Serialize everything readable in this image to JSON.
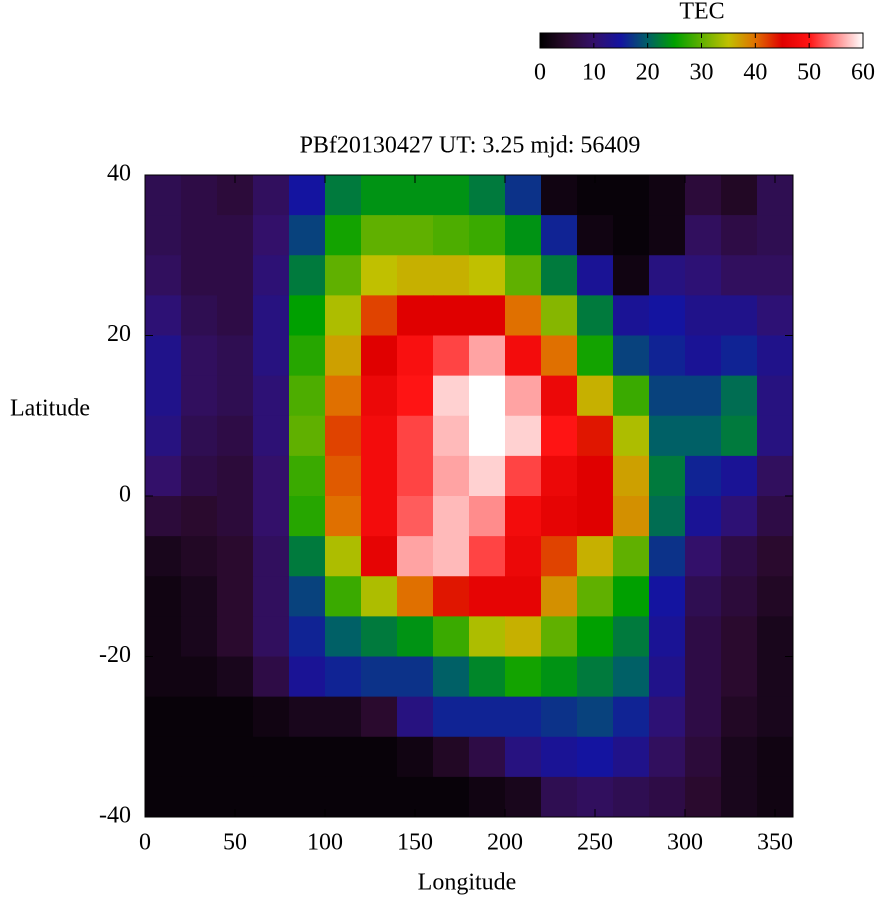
{
  "chart_data": {
    "type": "heatmap",
    "title": "PBf20130427  UT: 3.25  mjd: 56409",
    "x_label": "Longitude",
    "y_label": "Latitude",
    "colorbar_label": "TEC",
    "x": [
      10,
      30,
      50,
      70,
      90,
      110,
      130,
      150,
      170,
      190,
      210,
      230,
      250,
      270,
      290,
      310,
      330,
      350
    ],
    "y": [
      37.5,
      32.5,
      27.5,
      22.5,
      17.5,
      12.5,
      7.5,
      2.5,
      -2.5,
      -7.5,
      -12.5,
      -17.5,
      -22.5,
      -27.5,
      -32.5,
      -37.5
    ],
    "z": [
      [
        8,
        7,
        6,
        9,
        15,
        22,
        24,
        24,
        24,
        22,
        17,
        2,
        1,
        1,
        2,
        6,
        4,
        8
      ],
      [
        8,
        7,
        7,
        10,
        18,
        26,
        30,
        30,
        29,
        28,
        24,
        16,
        2,
        1,
        2,
        9,
        7,
        8
      ],
      [
        9,
        7,
        7,
        11,
        22,
        30,
        35,
        36,
        36,
        35,
        30,
        22,
        14,
        2,
        12,
        11,
        9,
        9
      ],
      [
        11,
        8,
        7,
        12,
        25,
        34,
        42,
        45,
        45,
        45,
        40,
        32,
        22,
        14,
        15,
        13,
        13,
        11
      ],
      [
        13,
        9,
        8,
        12,
        27,
        37,
        45,
        49,
        52,
        56,
        48,
        40,
        26,
        18,
        16,
        14,
        16,
        13
      ],
      [
        13,
        9,
        8,
        11,
        29,
        40,
        47,
        50,
        58,
        60,
        56,
        47,
        36,
        28,
        18,
        18,
        21,
        12
      ],
      [
        12,
        8,
        7,
        11,
        30,
        42,
        48,
        52,
        57,
        60,
        58,
        50,
        44,
        34,
        20,
        20,
        22,
        12
      ],
      [
        10,
        7,
        6,
        10,
        28,
        41,
        48,
        52,
        56,
        58,
        52,
        47,
        45,
        37,
        22,
        16,
        14,
        9
      ],
      [
        6,
        5,
        6,
        10,
        27,
        40,
        48,
        53,
        57,
        55,
        48,
        46,
        45,
        38,
        21,
        14,
        11,
        7
      ],
      [
        3,
        4,
        5,
        9,
        22,
        34,
        46,
        56,
        57,
        52,
        47,
        42,
        36,
        30,
        17,
        10,
        7,
        5
      ],
      [
        2,
        3,
        5,
        9,
        18,
        28,
        34,
        40,
        44,
        46,
        46,
        38,
        30,
        25,
        15,
        8,
        6,
        4
      ],
      [
        2,
        3,
        5,
        9,
        16,
        20,
        22,
        24,
        28,
        34,
        36,
        30,
        25,
        22,
        14,
        7,
        5,
        3
      ],
      [
        2,
        2,
        3,
        7,
        14,
        16,
        17,
        17,
        20,
        23,
        26,
        24,
        22,
        20,
        13,
        7,
        5,
        3
      ],
      [
        1,
        1,
        1,
        2,
        3,
        3,
        5,
        12,
        16,
        16,
        16,
        17,
        18,
        16,
        11,
        7,
        4,
        3
      ],
      [
        1,
        1,
        1,
        1,
        1,
        1,
        1,
        2,
        4,
        7,
        12,
        14,
        15,
        13,
        9,
        6,
        3,
        2
      ],
      [
        1,
        1,
        1,
        1,
        1,
        1,
        1,
        1,
        1,
        2,
        3,
        8,
        9,
        8,
        7,
        5,
        3,
        2
      ]
    ],
    "xlim": [
      0,
      360
    ],
    "ylim": [
      -40,
      40
    ],
    "zlim": [
      0,
      60
    ],
    "xticks": [
      0,
      50,
      100,
      150,
      200,
      250,
      300,
      350
    ],
    "yticks": [
      -40,
      -20,
      0,
      20,
      40
    ],
    "zticks": [
      0,
      10,
      20,
      30,
      40,
      50,
      60
    ],
    "colorscale": [
      "#000000",
      "#2a0a2e",
      "#33106a",
      "#1414a0",
      "#006066",
      "#00a000",
      "#60b000",
      "#c0c000",
      "#e07000",
      "#e00000",
      "#ff1414",
      "#ff8c8c",
      "#ffffff"
    ]
  }
}
